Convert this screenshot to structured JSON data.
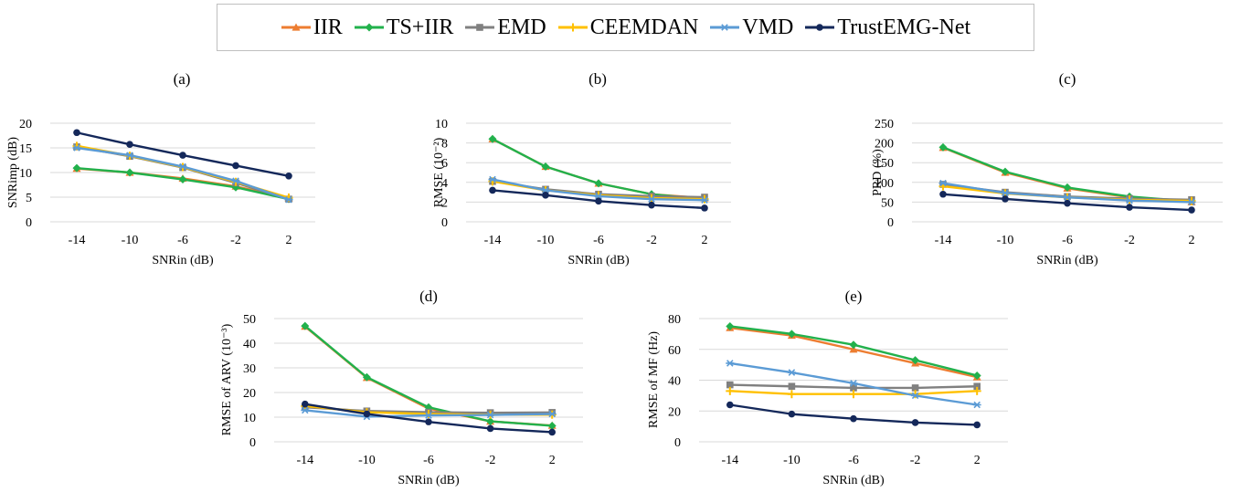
{
  "legend": [
    {
      "name": "IIR",
      "color": "#ED7D31",
      "marker": "triangle"
    },
    {
      "name": "TS+IIR",
      "color": "#22B14C",
      "marker": "diamond"
    },
    {
      "name": "EMD",
      "color": "#808080",
      "marker": "square"
    },
    {
      "name": "CEEMDAN",
      "color": "#FFC000",
      "marker": "plus"
    },
    {
      "name": "VMD",
      "color": "#5B9BD5",
      "marker": "asterisk"
    },
    {
      "name": "TrustEMG-Net",
      "color": "#14285A",
      "marker": "circle"
    }
  ],
  "chart_data": [
    {
      "type": "line",
      "panel_label": "(a)",
      "xlabel": "SNRin (dB)",
      "ylabel": "SNRimp (dB)",
      "categories": [
        "-14",
        "-10",
        "-6",
        "-2",
        "2"
      ],
      "ylim": [
        0,
        20
      ],
      "yticks": [
        0,
        5,
        10,
        15,
        20
      ],
      "series": [
        {
          "name": "IIR",
          "values": [
            10.8,
            10.0,
            8.8,
            7.2,
            4.8
          ]
        },
        {
          "name": "TS+IIR",
          "values": [
            10.9,
            10.0,
            8.6,
            7.0,
            4.6
          ]
        },
        {
          "name": "EMD",
          "values": [
            15.2,
            13.3,
            11.0,
            7.9,
            4.6
          ]
        },
        {
          "name": "CEEMDAN",
          "values": [
            15.4,
            13.4,
            11.1,
            8.1,
            4.9
          ]
        },
        {
          "name": "VMD",
          "values": [
            15.0,
            13.5,
            11.2,
            8.3,
            4.5
          ]
        },
        {
          "name": "TrustEMG-Net",
          "values": [
            18.1,
            15.7,
            13.5,
            11.4,
            9.3
          ]
        }
      ]
    },
    {
      "type": "line",
      "panel_label": "(b)",
      "xlabel": "SNRin (dB)",
      "ylabel": "RMSE (10⁻²)",
      "categories": [
        "-14",
        "-10",
        "-6",
        "-2",
        "2"
      ],
      "ylim": [
        0,
        10
      ],
      "yticks": [
        0,
        2,
        4,
        6,
        8,
        10
      ],
      "series": [
        {
          "name": "IIR",
          "values": [
            8.4,
            5.6,
            3.9,
            2.8,
            2.4
          ]
        },
        {
          "name": "TS+IIR",
          "values": [
            8.4,
            5.6,
            3.9,
            2.8,
            2.3
          ]
        },
        {
          "name": "EMD",
          "values": [
            4.1,
            3.3,
            2.8,
            2.6,
            2.5
          ]
        },
        {
          "name": "CEEMDAN",
          "values": [
            4.1,
            3.2,
            2.7,
            2.4,
            2.3
          ]
        },
        {
          "name": "VMD",
          "values": [
            4.3,
            3.2,
            2.6,
            2.3,
            2.2
          ]
        },
        {
          "name": "TrustEMG-Net",
          "values": [
            3.2,
            2.7,
            2.1,
            1.7,
            1.4
          ]
        }
      ]
    },
    {
      "type": "line",
      "panel_label": "(c)",
      "xlabel": "SNRin (dB)",
      "ylabel": "PRD (%)",
      "categories": [
        "-14",
        "-10",
        "-6",
        "-2",
        "2"
      ],
      "ylim": [
        0,
        250
      ],
      "yticks": [
        0,
        50,
        100,
        150,
        200,
        250
      ],
      "series": [
        {
          "name": "IIR",
          "values": [
            188,
            125,
            85,
            62,
            50
          ]
        },
        {
          "name": "TS+IIR",
          "values": [
            189,
            127,
            87,
            64,
            52
          ]
        },
        {
          "name": "EMD",
          "values": [
            95,
            75,
            64,
            59,
            56
          ]
        },
        {
          "name": "CEEMDAN",
          "values": [
            90,
            72,
            62,
            56,
            53
          ]
        },
        {
          "name": "VMD",
          "values": [
            98,
            73,
            62,
            54,
            50
          ]
        },
        {
          "name": "TrustEMG-Net",
          "values": [
            70,
            58,
            47,
            37,
            30
          ]
        }
      ]
    },
    {
      "type": "line",
      "panel_label": "(d)",
      "xlabel": "SNRin (dB)",
      "ylabel": "RMSE of ARV (10⁻³)",
      "categories": [
        "-14",
        "-10",
        "-6",
        "-2",
        "2"
      ],
      "ylim": [
        0,
        50
      ],
      "yticks": [
        0,
        10,
        20,
        30,
        40,
        50
      ],
      "series": [
        {
          "name": "IIR",
          "values": [
            46.8,
            26.0,
            13.5,
            8.3,
            6.6
          ]
        },
        {
          "name": "TS+IIR",
          "values": [
            47.0,
            26.2,
            14.0,
            8.3,
            6.5
          ]
        },
        {
          "name": "EMD",
          "values": [
            14.0,
            12.5,
            12.0,
            11.8,
            11.9
          ]
        },
        {
          "name": "CEEMDAN",
          "values": [
            14.5,
            12.0,
            11.3,
            11.0,
            11.0
          ]
        },
        {
          "name": "VMD",
          "values": [
            12.8,
            10.2,
            10.7,
            10.9,
            11.3
          ]
        },
        {
          "name": "TrustEMG-Net",
          "values": [
            15.3,
            11.3,
            8.1,
            5.4,
            3.9
          ]
        }
      ]
    },
    {
      "type": "line",
      "panel_label": "(e)",
      "xlabel": "SNRin (dB)",
      "ylabel": "RMSE of MF (Hz)",
      "categories": [
        "-14",
        "-10",
        "-6",
        "-2",
        "2"
      ],
      "ylim": [
        0,
        80
      ],
      "yticks": [
        0,
        20,
        40,
        60,
        80
      ],
      "series": [
        {
          "name": "IIR",
          "values": [
            74,
            69,
            60,
            51,
            42
          ]
        },
        {
          "name": "TS+IIR",
          "values": [
            75,
            70,
            63,
            53,
            43
          ]
        },
        {
          "name": "EMD",
          "values": [
            37,
            36,
            35,
            35,
            36
          ]
        },
        {
          "name": "CEEMDAN",
          "values": [
            33,
            31,
            31,
            31,
            33
          ]
        },
        {
          "name": "VMD",
          "values": [
            51,
            45,
            38,
            30,
            24
          ]
        },
        {
          "name": "TrustEMG-Net",
          "values": [
            24,
            18,
            15,
            12.5,
            11
          ]
        }
      ]
    }
  ]
}
